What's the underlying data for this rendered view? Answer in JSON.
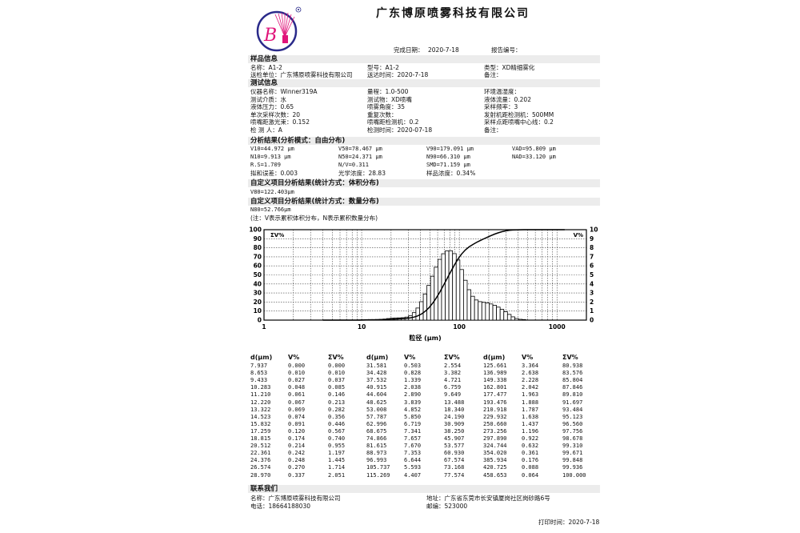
{
  "company_title": "广东博原喷雾科技有限公司",
  "logo": {
    "letter": "B",
    "colors": {
      "ring": "#2a2a8a",
      "mark": "#e0147a"
    }
  },
  "report": {
    "completion_label": "完成日期：",
    "completion_date": "2020-7-18",
    "report_no_label": "报告编号："
  },
  "sample_info": {
    "header": "样品信息",
    "rows": [
      [
        "名称：A1-2",
        "型号：A1-2",
        "类型：XD精细雾化"
      ],
      [
        "送检单位：广东博原喷雾科技有限公司",
        "送达时间：2020-7-18",
        "备注："
      ]
    ]
  },
  "test_info": {
    "header": "测试信息",
    "rows": [
      [
        "仪器名称：Winner319A",
        "量程：1.0-500",
        "环境温湿度："
      ],
      [
        "测试介质：水",
        "测试物：XD喷嘴",
        "液体流量：0.202"
      ],
      [
        "液体压力：0.65",
        "喷雾角度：35",
        "采样频率：3"
      ],
      [
        "单次采样次数：20",
        "重复次数：",
        "发射机距检测机：500MM"
      ],
      [
        "喷嘴距激光束：0.152",
        "喷嘴距检测机：0.2",
        "采样点距喷嘴中心线：0.2"
      ],
      [
        "检 测 人：A",
        "检测时间：2020-07-18",
        "备注："
      ]
    ]
  },
  "analysis": {
    "header": "分析结果(分析模式：自由分布)",
    "rows": [
      [
        "V10=44.972 μm",
        "V50=78.467 μm",
        "V90=179.091 μm",
        "VAD=95.809 μm"
      ],
      [
        "N10=9.913 μm",
        "N50=24.371 μm",
        "N90=66.310 μm",
        "NAD=33.120 μm"
      ],
      [
        "R.S=1.709",
        "N/V=0.311",
        "SMD=71.159 μm",
        ""
      ],
      [
        "拟和误差：0.003",
        "光学浓度：28.83",
        "样品浓度：0.34%",
        ""
      ]
    ]
  },
  "custom_volume": {
    "header": "自定义项目分析结果(统计方式：体积分布)",
    "value": "V80=122.403μm"
  },
  "custom_number": {
    "header": "自定义项目分析结果(统计方式：数量分布)",
    "value": "N80=52.766μm"
  },
  "note": "(注：V表示累积体积分布，N表示累积数量分布)",
  "chart_data": {
    "type": "bar+line",
    "xscale": "log",
    "xlim": [
      1,
      2000
    ],
    "x_ticks": [
      "1",
      "10",
      "100",
      "1000"
    ],
    "xlabel": "粒径 (μm)",
    "left_axis": {
      "label": "ΣV%",
      "ylim": [
        0,
        100
      ],
      "ticks": [
        "0",
        "10",
        "20",
        "30",
        "40",
        "50",
        "60",
        "70",
        "80",
        "90",
        "100"
      ]
    },
    "right_axis": {
      "label": "V%",
      "ylim": [
        0,
        10
      ],
      "ticks": [
        "0",
        "1",
        "2",
        "3",
        "4",
        "5",
        "6",
        "7",
        "8",
        "9",
        "10"
      ]
    },
    "grid": true,
    "series_source": "table: V% as bars (right axis), ΣV% as line (left axis)"
  },
  "table": {
    "headers": [
      "d(μm)",
      "V%",
      "ΣV%"
    ],
    "rows": [
      [
        "7.937",
        "0.000",
        "0.000"
      ],
      [
        "8.653",
        "0.010",
        "0.010"
      ],
      [
        "9.433",
        "0.027",
        "0.037"
      ],
      [
        "10.283",
        "0.048",
        "0.085"
      ],
      [
        "11.210",
        "0.061",
        "0.146"
      ],
      [
        "12.220",
        "0.067",
        "0.213"
      ],
      [
        "13.322",
        "0.069",
        "0.282"
      ],
      [
        "14.523",
        "0.074",
        "0.356"
      ],
      [
        "15.832",
        "0.091",
        "0.446"
      ],
      [
        "17.259",
        "0.120",
        "0.567"
      ],
      [
        "18.815",
        "0.174",
        "0.740"
      ],
      [
        "20.512",
        "0.214",
        "0.955"
      ],
      [
        "22.361",
        "0.242",
        "1.197"
      ],
      [
        "24.376",
        "0.248",
        "1.445"
      ],
      [
        "26.574",
        "0.270",
        "1.714"
      ],
      [
        "28.970",
        "0.337",
        "2.051"
      ],
      [
        "31.581",
        "0.503",
        "2.554"
      ],
      [
        "34.428",
        "0.828",
        "3.382"
      ],
      [
        "37.532",
        "1.339",
        "4.721"
      ],
      [
        "40.915",
        "2.038",
        "6.759"
      ],
      [
        "44.604",
        "2.890",
        "9.649"
      ],
      [
        "48.625",
        "3.839",
        "13.488"
      ],
      [
        "53.008",
        "4.852",
        "18.340"
      ],
      [
        "57.787",
        "5.850",
        "24.190"
      ],
      [
        "62.996",
        "6.719",
        "30.909"
      ],
      [
        "68.675",
        "7.341",
        "38.250"
      ],
      [
        "74.866",
        "7.657",
        "45.907"
      ],
      [
        "81.615",
        "7.670",
        "53.577"
      ],
      [
        "88.973",
        "7.353",
        "60.930"
      ],
      [
        "96.993",
        "6.644",
        "67.574"
      ],
      [
        "105.737",
        "5.593",
        "73.168"
      ],
      [
        "115.269",
        "4.407",
        "77.574"
      ],
      [
        "125.661",
        "3.364",
        "80.938"
      ],
      [
        "136.989",
        "2.638",
        "83.576"
      ],
      [
        "149.338",
        "2.228",
        "85.804"
      ],
      [
        "162.801",
        "2.042",
        "87.846"
      ],
      [
        "177.477",
        "1.963",
        "89.810"
      ],
      [
        "193.476",
        "1.888",
        "91.697"
      ],
      [
        "210.918",
        "1.787",
        "93.484"
      ],
      [
        "229.932",
        "1.638",
        "95.123"
      ],
      [
        "250.660",
        "1.437",
        "96.560"
      ],
      [
        "273.256",
        "1.196",
        "97.756"
      ],
      [
        "297.890",
        "0.922",
        "98.678"
      ],
      [
        "324.744",
        "0.632",
        "99.310"
      ],
      [
        "354.020",
        "0.361",
        "99.671"
      ],
      [
        "385.934",
        "0.176",
        "99.848"
      ],
      [
        "420.725",
        "0.088",
        "99.936"
      ],
      [
        "458.653",
        "0.064",
        "100.000"
      ]
    ]
  },
  "contact": {
    "header": "联系我们",
    "name": "名称：广东博原喷雾科技有限公司",
    "address": "地址：广东省东莞市长安镇厦岗社区岗砂路6号",
    "phone": "电话：18664188030",
    "postcode": "邮编：523000"
  },
  "print_time": "打印时间：2020-7-18"
}
